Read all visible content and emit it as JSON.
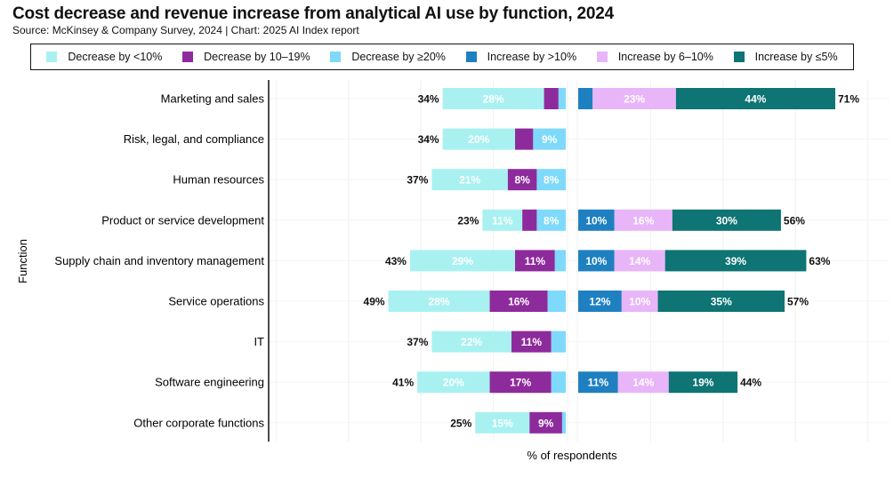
{
  "chart_data": {
    "type": "bar",
    "orientation": "horizontal-diverging-stacked",
    "title": "Cost decrease and revenue increase from analytical AI use by function, 2024",
    "subtitle": "Source: McKinsey & Company Survey, 2024 | Chart: 2025 AI Index report",
    "xlabel": "% of respondents",
    "ylabel": "Function",
    "legend_position": "top",
    "grid": true,
    "categories": [
      "Marketing and sales",
      "Risk, legal, and compliance",
      "Human resources",
      "Product or service development",
      "Supply chain and inventory management",
      "Service operations",
      "IT",
      "Software engineering",
      "Other corporate functions"
    ],
    "cost_series": [
      {
        "name": "Decrease by <10%",
        "color": "#a9f1f1",
        "values": [
          28,
          20,
          21,
          11,
          29,
          28,
          22,
          20,
          15
        ],
        "labels": [
          "28%",
          "20%",
          "21%",
          "11%",
          "29%",
          "28%",
          "22%",
          "20%",
          "15%"
        ]
      },
      {
        "name": "Decrease by 10–19%",
        "color": "#8e2b9c",
        "values": [
          4,
          5,
          8,
          4,
          11,
          16,
          11,
          17,
          9
        ],
        "labels": [
          null,
          null,
          "8%",
          null,
          "11%",
          "16%",
          "11%",
          "17%",
          "9%"
        ]
      },
      {
        "name": "Decrease by ≥20%",
        "color": "#7ed9fb",
        "values": [
          2,
          9,
          8,
          8,
          3,
          5,
          4,
          4,
          1
        ],
        "labels": [
          null,
          "9%",
          "8%",
          "8%",
          null,
          null,
          null,
          null,
          null
        ]
      }
    ],
    "cost_totals": [
      "34%",
      "34%",
      "37%",
      "23%",
      "43%",
      "49%",
      "37%",
      "41%",
      "25%"
    ],
    "revenue_series": [
      {
        "name": "Increase by >10%",
        "color": "#1f80c1",
        "values": [
          4,
          null,
          null,
          10,
          10,
          12,
          null,
          11,
          null
        ],
        "labels": [
          null,
          null,
          null,
          "10%",
          "10%",
          "12%",
          null,
          "11%",
          null
        ]
      },
      {
        "name": "Increase by 6–10%",
        "color": "#e8b5f9",
        "values": [
          23,
          null,
          null,
          16,
          14,
          10,
          null,
          14,
          null
        ],
        "labels": [
          "23%",
          null,
          null,
          "16%",
          "14%",
          "10%",
          null,
          "14%",
          null
        ]
      },
      {
        "name": "Increase by ≤5%",
        "color": "#0e7474",
        "values": [
          44,
          null,
          null,
          30,
          39,
          35,
          null,
          19,
          null
        ],
        "labels": [
          "44%",
          null,
          null,
          "30%",
          "39%",
          "35%",
          null,
          "19%",
          null
        ]
      }
    ],
    "revenue_totals": [
      "71%",
      null,
      null,
      "56%",
      "63%",
      "57%",
      null,
      "44%",
      null
    ]
  }
}
